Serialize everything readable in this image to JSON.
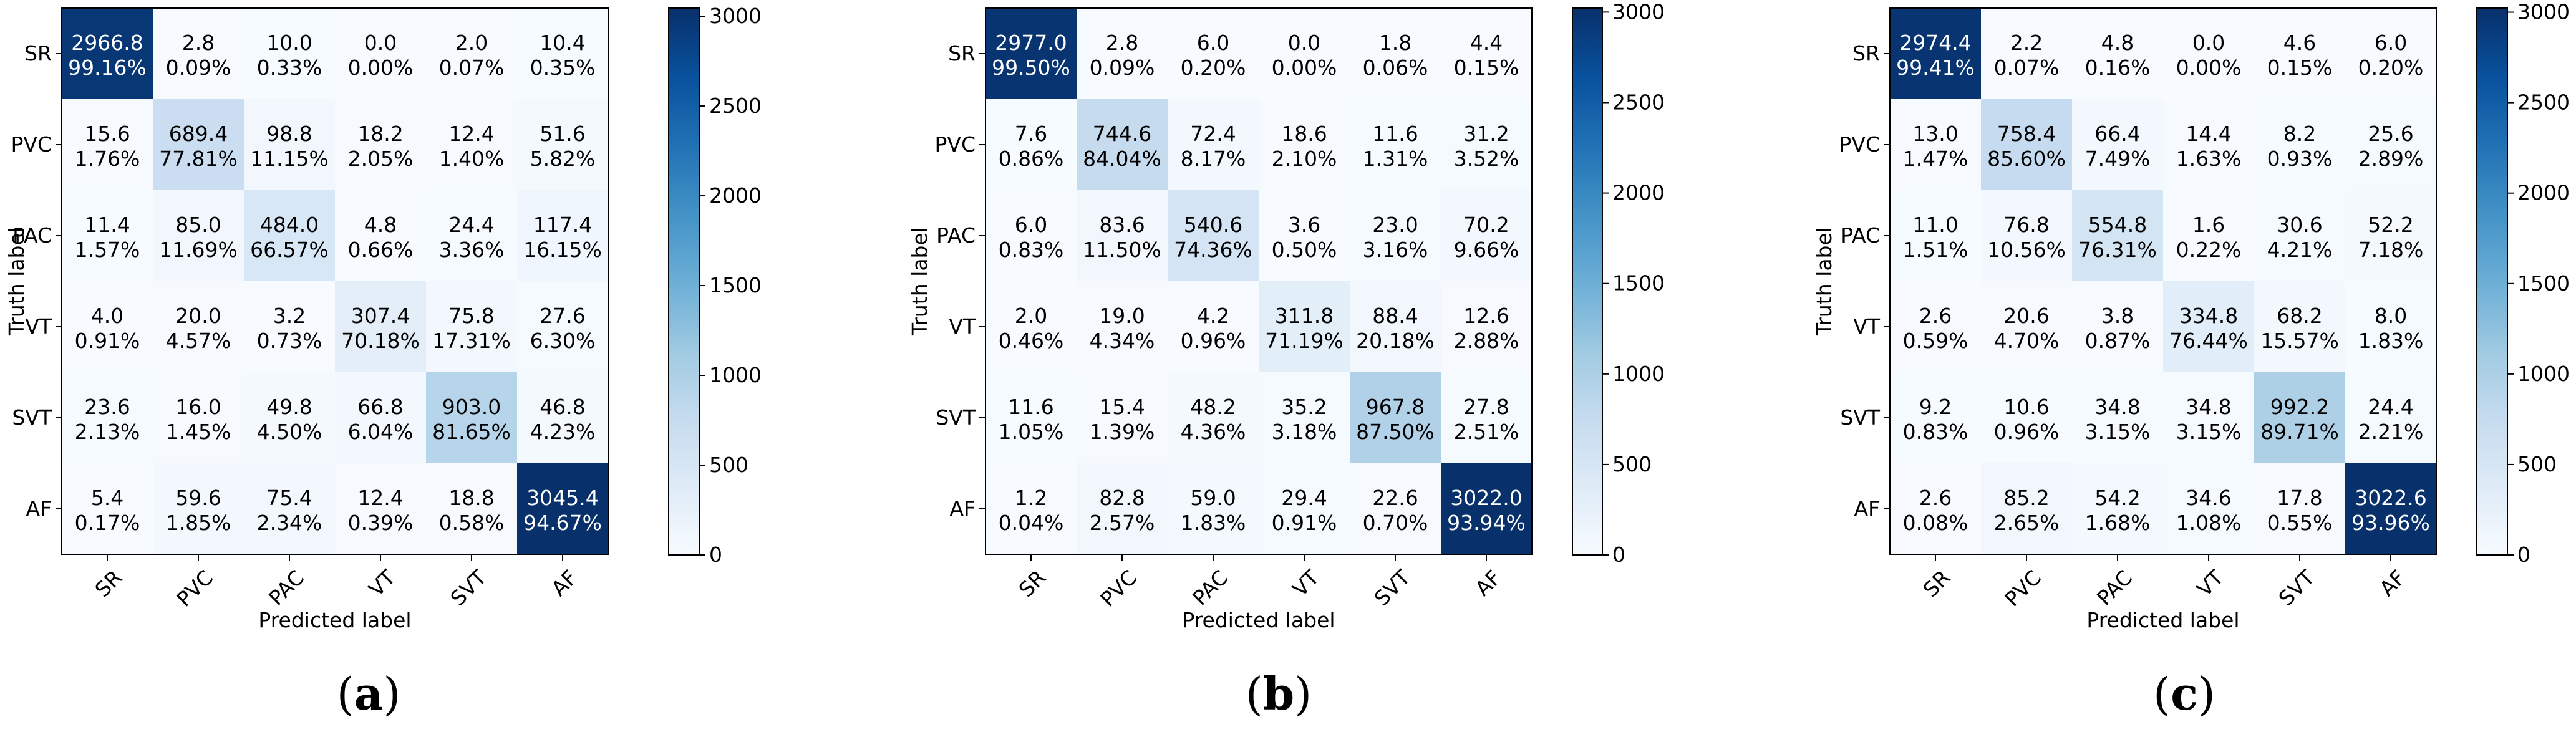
{
  "chart_data": [
    {
      "type": "heatmap",
      "panel_label": "a",
      "categories": [
        "SR",
        "PVC",
        "PAC",
        "VT",
        "SVT",
        "AF"
      ],
      "xlabel": "Predicted label",
      "ylabel": "Truth label",
      "colorbar": {
        "range": [
          0,
          3045.4
        ],
        "ticks": [
          "0",
          "500",
          "1000",
          "1500",
          "2000",
          "2500",
          "3000"
        ]
      },
      "values": [
        [
          2966.8,
          2.8,
          10.0,
          0.0,
          2.0,
          10.4
        ],
        [
          15.6,
          689.4,
          98.8,
          18.2,
          12.4,
          51.6
        ],
        [
          11.4,
          85.0,
          484.0,
          4.8,
          24.4,
          117.4
        ],
        [
          4.0,
          20.0,
          3.2,
          307.4,
          75.8,
          27.6
        ],
        [
          23.6,
          16.0,
          49.8,
          66.8,
          903.0,
          46.8
        ],
        [
          5.4,
          59.6,
          75.4,
          12.4,
          18.8,
          3045.4
        ]
      ],
      "value_labels": [
        [
          "2966.8",
          "2.8",
          "10.0",
          "0.0",
          "2.0",
          "10.4"
        ],
        [
          "15.6",
          "689.4",
          "98.8",
          "18.2",
          "12.4",
          "51.6"
        ],
        [
          "11.4",
          "85.0",
          "484.0",
          "4.8",
          "24.4",
          "117.4"
        ],
        [
          "4.0",
          "20.0",
          "3.2",
          "307.4",
          "75.8",
          "27.6"
        ],
        [
          "23.6",
          "16.0",
          "49.8",
          "66.8",
          "903.0",
          "46.8"
        ],
        [
          "5.4",
          "59.6",
          "75.4",
          "12.4",
          "18.8",
          "3045.4"
        ]
      ],
      "percents": [
        [
          "99.16%",
          "0.09%",
          "0.33%",
          "0.00%",
          "0.07%",
          "0.35%"
        ],
        [
          "1.76%",
          "77.81%",
          "11.15%",
          "2.05%",
          "1.40%",
          "5.82%"
        ],
        [
          "1.57%",
          "11.69%",
          "66.57%",
          "0.66%",
          "3.36%",
          "16.15%"
        ],
        [
          "0.91%",
          "4.57%",
          "0.73%",
          "70.18%",
          "17.31%",
          "6.30%"
        ],
        [
          "2.13%",
          "1.45%",
          "4.50%",
          "6.04%",
          "81.65%",
          "4.23%"
        ],
        [
          "0.17%",
          "1.85%",
          "2.34%",
          "0.39%",
          "0.58%",
          "94.67%"
        ]
      ]
    },
    {
      "type": "heatmap",
      "panel_label": "b",
      "categories": [
        "SR",
        "PVC",
        "PAC",
        "VT",
        "SVT",
        "AF"
      ],
      "xlabel": "Predicted label",
      "ylabel": "Truth label",
      "colorbar": {
        "range": [
          0,
          3022.0
        ],
        "ticks": [
          "0",
          "500",
          "1000",
          "1500",
          "2000",
          "2500",
          "3000"
        ]
      },
      "values": [
        [
          2977.0,
          2.8,
          6.0,
          0.0,
          1.8,
          4.4
        ],
        [
          7.6,
          744.6,
          72.4,
          18.6,
          11.6,
          31.2
        ],
        [
          6.0,
          83.6,
          540.6,
          3.6,
          23.0,
          70.2
        ],
        [
          2.0,
          19.0,
          4.2,
          311.8,
          88.4,
          12.6
        ],
        [
          11.6,
          15.4,
          48.2,
          35.2,
          967.8,
          27.8
        ],
        [
          1.2,
          82.8,
          59.0,
          29.4,
          22.6,
          3022.0
        ]
      ],
      "value_labels": [
        [
          "2977.0",
          "2.8",
          "6.0",
          "0.0",
          "1.8",
          "4.4"
        ],
        [
          "7.6",
          "744.6",
          "72.4",
          "18.6",
          "11.6",
          "31.2"
        ],
        [
          "6.0",
          "83.6",
          "540.6",
          "3.6",
          "23.0",
          "70.2"
        ],
        [
          "2.0",
          "19.0",
          "4.2",
          "311.8",
          "88.4",
          "12.6"
        ],
        [
          "11.6",
          "15.4",
          "48.2",
          "35.2",
          "967.8",
          "27.8"
        ],
        [
          "1.2",
          "82.8",
          "59.0",
          "29.4",
          "22.6",
          "3022.0"
        ]
      ],
      "percents": [
        [
          "99.50%",
          "0.09%",
          "0.20%",
          "0.00%",
          "0.06%",
          "0.15%"
        ],
        [
          "0.86%",
          "84.04%",
          "8.17%",
          "2.10%",
          "1.31%",
          "3.52%"
        ],
        [
          "0.83%",
          "11.50%",
          "74.36%",
          "0.50%",
          "3.16%",
          "9.66%"
        ],
        [
          "0.46%",
          "4.34%",
          "0.96%",
          "71.19%",
          "20.18%",
          "2.88%"
        ],
        [
          "1.05%",
          "1.39%",
          "4.36%",
          "3.18%",
          "87.50%",
          "2.51%"
        ],
        [
          "0.04%",
          "2.57%",
          "1.83%",
          "0.91%",
          "0.70%",
          "93.94%"
        ]
      ]
    },
    {
      "type": "heatmap",
      "panel_label": "c",
      "categories": [
        "SR",
        "PVC",
        "PAC",
        "VT",
        "SVT",
        "AF"
      ],
      "xlabel": "Predicted label",
      "ylabel": "Truth label",
      "colorbar": {
        "range": [
          0,
          3022.6
        ],
        "ticks": [
          "0",
          "500",
          "1000",
          "1500",
          "2000",
          "2500",
          "3000"
        ]
      },
      "values": [
        [
          2974.4,
          2.2,
          4.8,
          0.0,
          4.6,
          6.0
        ],
        [
          13.0,
          758.4,
          66.4,
          14.4,
          8.2,
          25.6
        ],
        [
          11.0,
          76.8,
          554.8,
          1.6,
          30.6,
          52.2
        ],
        [
          2.6,
          20.6,
          3.8,
          334.8,
          68.2,
          8.0
        ],
        [
          9.2,
          10.6,
          34.8,
          34.8,
          992.2,
          24.4
        ],
        [
          2.6,
          85.2,
          54.2,
          34.6,
          17.8,
          3022.6
        ]
      ],
      "value_labels": [
        [
          "2974.4",
          "2.2",
          "4.8",
          "0.0",
          "4.6",
          "6.0"
        ],
        [
          "13.0",
          "758.4",
          "66.4",
          "14.4",
          "8.2",
          "25.6"
        ],
        [
          "11.0",
          "76.8",
          "554.8",
          "1.6",
          "30.6",
          "52.2"
        ],
        [
          "2.6",
          "20.6",
          "3.8",
          "334.8",
          "68.2",
          "8.0"
        ],
        [
          "9.2",
          "10.6",
          "34.8",
          "34.8",
          "992.2",
          "24.4"
        ],
        [
          "2.6",
          "85.2",
          "54.2",
          "34.6",
          "17.8",
          "3022.6"
        ]
      ],
      "percents": [
        [
          "99.41%",
          "0.07%",
          "0.16%",
          "0.00%",
          "0.15%",
          "0.20%"
        ],
        [
          "1.47%",
          "85.60%",
          "7.49%",
          "1.63%",
          "0.93%",
          "2.89%"
        ],
        [
          "1.51%",
          "10.56%",
          "76.31%",
          "0.22%",
          "4.21%",
          "7.18%"
        ],
        [
          "0.59%",
          "4.70%",
          "0.87%",
          "76.44%",
          "15.57%",
          "1.83%"
        ],
        [
          "0.83%",
          "0.96%",
          "3.15%",
          "3.15%",
          "89.71%",
          "2.21%"
        ],
        [
          "0.08%",
          "2.65%",
          "1.68%",
          "1.08%",
          "0.55%",
          "93.96%"
        ]
      ]
    }
  ],
  "colormap": [
    "#f7fbff",
    "#deebf7",
    "#c6dbef",
    "#9ecae1",
    "#6baed6",
    "#4292c6",
    "#2171b5",
    "#08519c",
    "#08306b"
  ]
}
